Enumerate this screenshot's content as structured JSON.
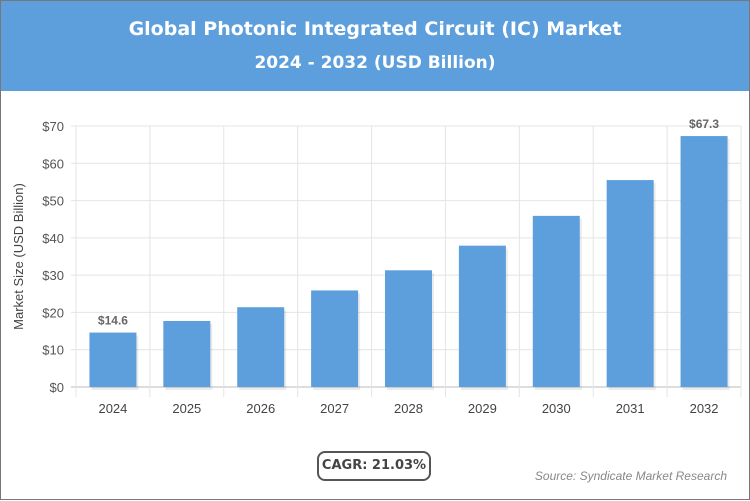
{
  "chart_data": {
    "type": "bar",
    "title": "Global Photonic Integrated Circuit (IC) Market",
    "subtitle": "2024 - 2032 (USD Billion)",
    "xlabel": "",
    "ylabel": "Market Size (USD Billion)",
    "categories": [
      "2024",
      "2025",
      "2026",
      "2027",
      "2028",
      "2029",
      "2030",
      "2031",
      "2032"
    ],
    "values": [
      14.6,
      17.7,
      21.4,
      25.9,
      31.3,
      37.9,
      45.9,
      55.5,
      67.3
    ],
    "data_labels": {
      "0": "$14.6",
      "8": "$67.3"
    },
    "ylim": [
      0,
      70
    ],
    "yticks": [
      "$0",
      "$10",
      "$20",
      "$30",
      "$40",
      "$50",
      "$60",
      "$70"
    ],
    "grid": true,
    "bar_color": "#5c9fdc",
    "header_color": "#5c9fdc"
  },
  "cagr": "CAGR: 21.03%",
  "source": "Source: Syndicate Market Research"
}
